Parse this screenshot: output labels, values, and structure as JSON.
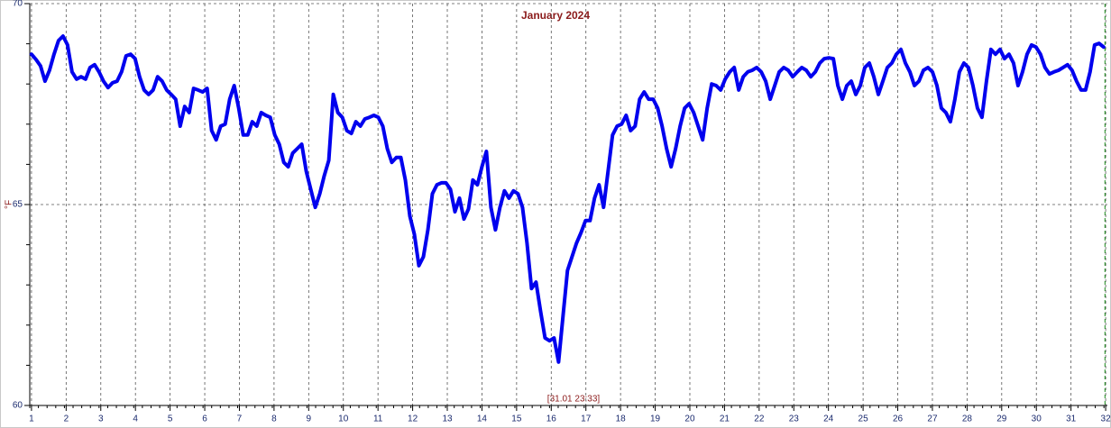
{
  "chart_data": {
    "type": "line",
    "title": "January 2024",
    "ylabel": "°F",
    "cursor_label": "[31.01 23:33]",
    "xlim": [
      0.95,
      32.05
    ],
    "ylim": [
      60,
      70
    ],
    "xticks": [
      1,
      2,
      3,
      4,
      5,
      6,
      7,
      8,
      9,
      10,
      11,
      12,
      13,
      14,
      15,
      16,
      17,
      18,
      19,
      20,
      21,
      22,
      23,
      24,
      25,
      26,
      27,
      28,
      29,
      30,
      31,
      32
    ],
    "yticks": [
      60,
      65,
      70
    ],
    "yminorticks": [
      61,
      62,
      63,
      64,
      66,
      67,
      68,
      69
    ],
    "xminor_step": 0.25,
    "grid": true,
    "cursor_x": 31.98,
    "cursor_color": "#1a8a1a",
    "series": [
      {
        "color": "#0000ee",
        "x": [
          1,
          1.13,
          1.26,
          1.39,
          1.52,
          1.65,
          1.78,
          1.91,
          2.04,
          2.17,
          2.3,
          2.43,
          2.56,
          2.69,
          2.82,
          2.95,
          3.08,
          3.21,
          3.34,
          3.47,
          3.6,
          3.73,
          3.86,
          3.99,
          4.12,
          4.25,
          4.38,
          4.51,
          4.64,
          4.77,
          4.9,
          5.03,
          5.16,
          5.29,
          5.42,
          5.55,
          5.68,
          5.81,
          5.94,
          6.07,
          6.2,
          6.33,
          6.46,
          6.59,
          6.72,
          6.85,
          6.98,
          7.11,
          7.24,
          7.37,
          7.5,
          7.63,
          7.76,
          7.89,
          8.02,
          8.15,
          8.28,
          8.41,
          8.54,
          8.67,
          8.8,
          8.93,
          9.06,
          9.19,
          9.32,
          9.45,
          9.58,
          9.71,
          9.84,
          9.97,
          10.1,
          10.23,
          10.36,
          10.49,
          10.62,
          10.75,
          10.88,
          11.01,
          11.14,
          11.27,
          11.4,
          11.53,
          11.66,
          11.79,
          11.92,
          12.05,
          12.18,
          12.31,
          12.44,
          12.57,
          12.7,
          12.83,
          12.96,
          13.09,
          13.22,
          13.35,
          13.48,
          13.61,
          13.74,
          13.87,
          14,
          14.13,
          14.26,
          14.39,
          14.52,
          14.65,
          14.78,
          14.91,
          15.04,
          15.17,
          15.3,
          15.43,
          15.56,
          15.69,
          15.82,
          15.95,
          16.08,
          16.21,
          16.34,
          16.47,
          16.6,
          16.73,
          16.86,
          16.99,
          17.12,
          17.25,
          17.38,
          17.51,
          17.64,
          17.77,
          17.9,
          18.03,
          18.16,
          18.29,
          18.42,
          18.55,
          18.68,
          18.81,
          18.94,
          19.07,
          19.2,
          19.33,
          19.46,
          19.59,
          19.72,
          19.85,
          19.98,
          20.11,
          20.24,
          20.37,
          20.5,
          20.63,
          20.76,
          20.89,
          21.02,
          21.15,
          21.28,
          21.41,
          21.54,
          21.67,
          21.8,
          21.93,
          22.06,
          22.19,
          22.32,
          22.45,
          22.58,
          22.71,
          22.84,
          22.97,
          23.1,
          23.23,
          23.36,
          23.49,
          23.62,
          23.75,
          23.88,
          24.01,
          24.14,
          24.27,
          24.4,
          24.53,
          24.66,
          24.79,
          24.92,
          25.05,
          25.18,
          25.31,
          25.44,
          25.57,
          25.7,
          25.83,
          25.96,
          26.09,
          26.22,
          26.35,
          26.48,
          26.61,
          26.74,
          26.87,
          27,
          27.13,
          27.26,
          27.39,
          27.52,
          27.65,
          27.78,
          27.91,
          28.04,
          28.17,
          28.3,
          28.43,
          28.56,
          28.69,
          28.82,
          28.95,
          29.08,
          29.21,
          29.34,
          29.47,
          29.6,
          29.73,
          29.86,
          29.99,
          30.12,
          30.25,
          30.38,
          30.51,
          30.64,
          30.77,
          30.9,
          31.03,
          31.16,
          31.29,
          31.42,
          31.55,
          31.68,
          31.81,
          31.94
        ],
        "values": [
          68.74,
          68.61,
          68.45,
          68.07,
          68.34,
          68.74,
          69.08,
          69.19,
          68.97,
          68.3,
          68.12,
          68.18,
          68.12,
          68.41,
          68.48,
          68.3,
          68.07,
          67.91,
          68.03,
          68.07,
          68.3,
          68.7,
          68.74,
          68.63,
          68.18,
          67.85,
          67.74,
          67.85,
          68.18,
          68.07,
          67.85,
          67.74,
          67.62,
          66.95,
          67.44,
          67.29,
          67.89,
          67.85,
          67.8,
          67.89,
          66.84,
          66.61,
          66.95,
          67.0,
          67.62,
          67.96,
          67.4,
          66.73,
          66.73,
          67.06,
          66.95,
          67.29,
          67.22,
          67.17,
          66.73,
          66.5,
          66.05,
          65.94,
          66.28,
          66.39,
          66.5,
          65.83,
          65.38,
          64.93,
          65.27,
          65.72,
          66.1,
          67.74,
          67.29,
          67.17,
          66.84,
          66.77,
          67.06,
          66.95,
          67.13,
          67.17,
          67.22,
          67.17,
          66.95,
          66.39,
          66.05,
          66.17,
          66.17,
          65.61,
          64.71,
          64.26,
          63.48,
          63.7,
          64.37,
          65.27,
          65.49,
          65.54,
          65.54,
          65.38,
          64.82,
          65.16,
          64.64,
          64.89,
          65.61,
          65.49,
          65.94,
          66.32,
          64.93,
          64.37,
          64.93,
          65.34,
          65.16,
          65.34,
          65.27,
          64.93,
          64.04,
          62.91,
          63.07,
          62.35,
          61.68,
          61.61,
          61.68,
          61.08,
          62.24,
          63.36,
          63.7,
          64.04,
          64.3,
          64.6,
          64.6,
          65.16,
          65.49,
          64.93,
          65.83,
          66.73,
          66.95,
          67.0,
          67.22,
          66.84,
          66.95,
          67.62,
          67.8,
          67.62,
          67.62,
          67.4,
          66.95,
          66.39,
          65.94,
          66.39,
          66.95,
          67.4,
          67.51,
          67.29,
          66.95,
          66.61,
          67.4,
          68.0,
          67.96,
          67.85,
          68.12,
          68.3,
          68.41,
          67.85,
          68.18,
          68.3,
          68.34,
          68.41,
          68.3,
          68.07,
          67.62,
          67.96,
          68.3,
          68.41,
          68.34,
          68.18,
          68.3,
          68.41,
          68.34,
          68.18,
          68.3,
          68.52,
          68.63,
          68.65,
          68.63,
          67.96,
          67.62,
          67.96,
          68.07,
          67.74,
          67.96,
          68.41,
          68.52,
          68.18,
          67.74,
          68.07,
          68.41,
          68.52,
          68.74,
          68.86,
          68.52,
          68.3,
          67.96,
          68.07,
          68.34,
          68.41,
          68.3,
          67.96,
          67.4,
          67.29,
          67.06,
          67.62,
          68.3,
          68.52,
          68.41,
          67.96,
          67.4,
          67.17,
          68.07,
          68.86,
          68.74,
          68.86,
          68.63,
          68.74,
          68.52,
          67.96,
          68.3,
          68.74,
          68.97,
          68.92,
          68.74,
          68.41,
          68.25,
          68.3,
          68.34,
          68.41,
          68.48,
          68.34,
          68.07,
          67.85,
          67.85,
          68.3,
          68.97,
          69.01,
          68.92
        ]
      }
    ]
  }
}
